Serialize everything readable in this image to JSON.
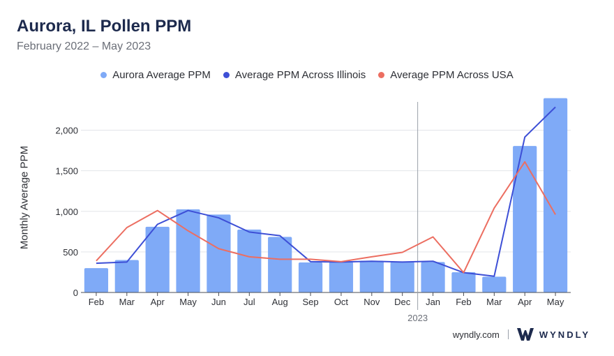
{
  "header": {
    "title": "Aurora, IL Pollen PPM",
    "subtitle": "February 2022 – May 2023"
  },
  "footer": {
    "site": "wyndly.com",
    "brand": "WYNDLY",
    "brand_color": "#1d2a4d"
  },
  "chart_data": {
    "type": "bar",
    "categories": [
      "Feb",
      "Mar",
      "Apr",
      "May",
      "Jun",
      "Jul",
      "Aug",
      "Sep",
      "Oct",
      "Nov",
      "Dec",
      "Jan",
      "Feb",
      "Mar",
      "Apr",
      "May"
    ],
    "year_marker": {
      "label": "2023",
      "before_category_index": 11
    },
    "ylabel": "Monthly Average PPM",
    "ylim": [
      0,
      2400
    ],
    "yticks": [
      0,
      500,
      1000,
      1500,
      2000
    ],
    "ytick_labels": [
      "0",
      "500",
      "1,000",
      "1,500",
      "2,000"
    ],
    "grid": true,
    "legend_position": "top-center",
    "series": [
      {
        "name": "Aurora Average PPM",
        "kind": "bar",
        "color": "#7faaf7",
        "values": [
          300,
          400,
          810,
          1025,
          960,
          775,
          685,
          370,
          375,
          390,
          375,
          375,
          250,
          195,
          1805,
          2395
        ]
      },
      {
        "name": "Average PPM Across Illinois",
        "kind": "line",
        "color": "#3d4fd6",
        "values": [
          360,
          375,
          840,
          1010,
          920,
          745,
          700,
          380,
          375,
          385,
          375,
          385,
          245,
          200,
          1915,
          2285
        ]
      },
      {
        "name": "Average PPM Across USA",
        "kind": "line",
        "color": "#ec6e61",
        "values": [
          390,
          800,
          1010,
          760,
          540,
          440,
          410,
          410,
          380,
          440,
          495,
          685,
          245,
          1040,
          1610,
          960
        ]
      }
    ]
  }
}
